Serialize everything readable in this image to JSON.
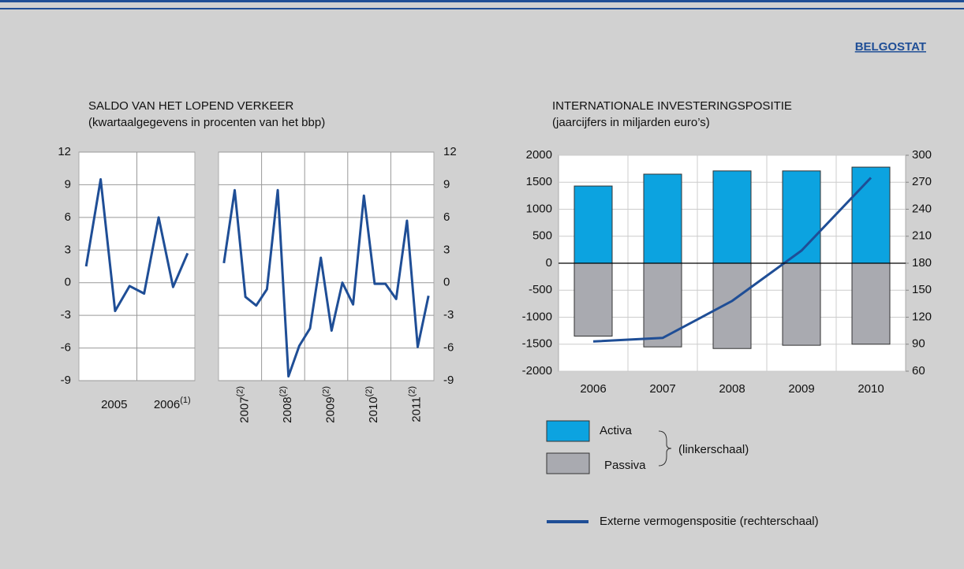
{
  "header": {
    "link": "BELGOSTAT"
  },
  "chart_data": [
    {
      "type": "line",
      "title": "SALDO VAN HET LOPEND VERKEER",
      "subtitle": "(kwartaalgegevens in procenten van het bbp)",
      "ylim": [
        -9,
        12
      ],
      "yticks": [
        -9,
        -6,
        -3,
        0,
        3,
        6,
        9,
        12
      ],
      "grid": true,
      "color": "#1f4e96",
      "panels": [
        {
          "years": [
            {
              "label": "2005",
              "values": [
                1.5,
                9.5,
                -2.6,
                -0.3
              ]
            },
            {
              "label": "2006",
              "note": "(1)",
              "values": [
                -1.0,
                6.0,
                -0.4,
                2.7
              ]
            }
          ]
        },
        {
          "years": [
            {
              "label": "2007",
              "note": "(2)",
              "values": [
                1.8,
                8.5,
                -1.3,
                -2.1
              ]
            },
            {
              "label": "2008",
              "note": "(2)",
              "values": [
                -0.6,
                8.5,
                -8.6,
                -5.8
              ]
            },
            {
              "label": "2009",
              "note": "(2)",
              "values": [
                -4.2,
                2.3,
                -4.4,
                0
              ]
            },
            {
              "label": "2010",
              "note": "(2)",
              "values": [
                -2,
                8,
                -0.1,
                -0.1
              ]
            },
            {
              "label": "2011",
              "note": "(2)",
              "values": [
                -1.5,
                5.7,
                -5.9,
                -1.2
              ]
            }
          ]
        }
      ]
    },
    {
      "type": "bar",
      "title": "INTERNATIONALE INVESTERINGSPOSITIE",
      "subtitle": "(jaarcijfers in miljarden euro’s)",
      "categories": [
        "2006",
        "2007",
        "2008",
        "2009",
        "2010"
      ],
      "ylim": [
        -2000,
        2000
      ],
      "yticks": [
        -2000,
        -1500,
        -1000,
        -500,
        0,
        500,
        1000,
        1500,
        2000
      ],
      "y2lim": [
        60,
        300
      ],
      "y2ticks": [
        60,
        90,
        120,
        150,
        180,
        210,
        240,
        270,
        300
      ],
      "grid": true,
      "series": [
        {
          "name": "Activa",
          "color": "#0ca3e0",
          "values": [
            1430,
            1650,
            1710,
            1710,
            1780
          ]
        },
        {
          "name": "Passiva",
          "color": "#a9aab0",
          "values": [
            -1350,
            -1550,
            -1580,
            -1520,
            -1500
          ]
        },
        {
          "name": "Externe vermogenspositie (rechterschaal)",
          "color": "#1f4e96",
          "type": "line",
          "axis": "y2",
          "values": [
            93,
            97,
            138,
            194,
            275
          ]
        }
      ],
      "legend_note": "(linkerschaal)"
    }
  ]
}
